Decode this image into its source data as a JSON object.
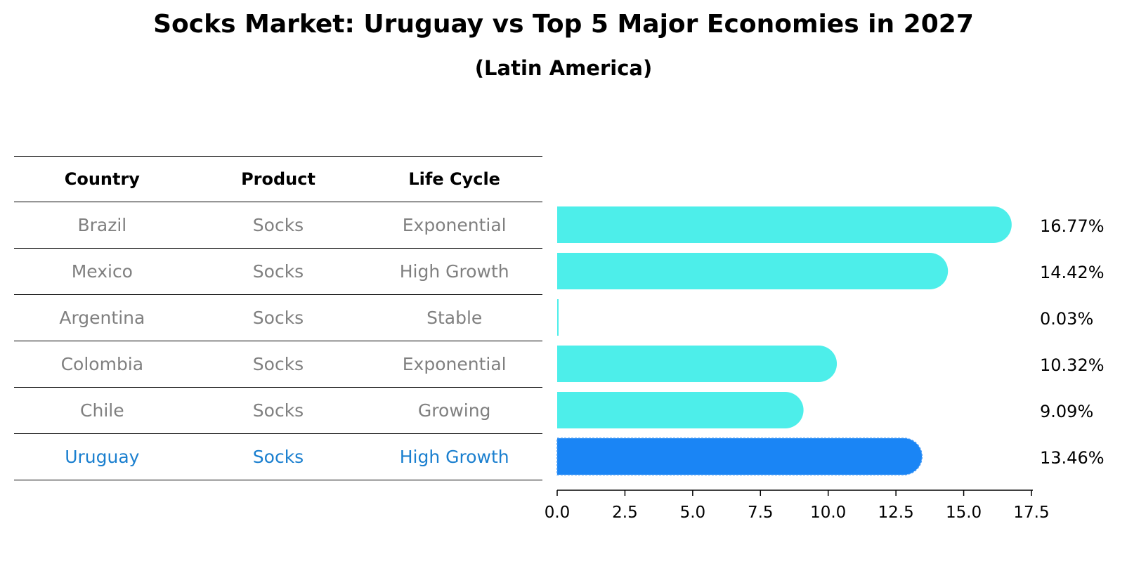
{
  "title": "Socks Market: Uruguay vs Top 5 Major Economies in 2027",
  "subtitle": "(Latin America)",
  "table": {
    "headers": [
      "Country",
      "Product",
      "Life Cycle"
    ],
    "rows": [
      [
        "Brazil",
        "Socks",
        "Exponential"
      ],
      [
        "Mexico",
        "Socks",
        "High Growth"
      ],
      [
        "Argentina",
        "Socks",
        "Stable"
      ],
      [
        "Colombia",
        "Socks",
        "Exponential"
      ],
      [
        "Chile",
        "Socks",
        "Growing"
      ],
      [
        "Uruguay",
        "Socks",
        "High Growth"
      ]
    ],
    "highlight_row": 5
  },
  "colors": {
    "bar": "#4deeea",
    "highlight_bar": "#1a85f5",
    "highlight_text": "#1a7fcf"
  },
  "chart_data": {
    "type": "bar",
    "orientation": "horizontal",
    "categories": [
      "Brazil",
      "Mexico",
      "Argentina",
      "Colombia",
      "Chile",
      "Uruguay"
    ],
    "values": [
      16.77,
      14.42,
      0.03,
      10.32,
      9.09,
      13.46
    ],
    "value_labels": [
      "16.77%",
      "14.42%",
      "0.03%",
      "10.32%",
      "9.09%",
      "13.46%"
    ],
    "xlim": [
      0,
      17.5
    ],
    "xticks": [
      0.0,
      2.5,
      5.0,
      7.5,
      10.0,
      12.5,
      15.0,
      17.5
    ],
    "xtick_labels": [
      "0.0",
      "2.5",
      "5.0",
      "7.5",
      "10.0",
      "12.5",
      "15.0",
      "17.5"
    ],
    "highlight": "Uruguay",
    "grid": false
  }
}
